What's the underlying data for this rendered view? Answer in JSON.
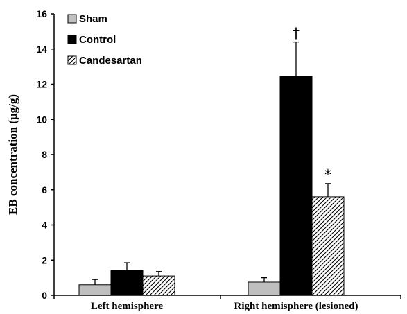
{
  "chart_data": {
    "type": "bar",
    "categories": [
      "Left hemisphere",
      "Right hemisphere (lesioned)"
    ],
    "series": [
      {
        "name": "Sham",
        "values": [
          0.6,
          0.75
        ],
        "errors": [
          0.3,
          0.25
        ],
        "fill": "solid",
        "color": "#bfbfbf"
      },
      {
        "name": "Control",
        "values": [
          1.4,
          12.45
        ],
        "errors": [
          0.45,
          1.95
        ],
        "fill": "solid",
        "color": "#000000"
      },
      {
        "name": "Candesartan",
        "values": [
          1.1,
          5.6
        ],
        "errors": [
          0.25,
          0.75
        ],
        "fill": "hatch",
        "color": "#ffffff"
      }
    ],
    "annotations": [
      {
        "text": "†",
        "category": 1,
        "series": 1
      },
      {
        "text": "*",
        "category": 1,
        "series": 2
      }
    ],
    "ylabel": "EB concentration (μg/g)",
    "ylim": [
      0,
      16
    ],
    "yticks": [
      0,
      2,
      4,
      6,
      8,
      10,
      12,
      14,
      16
    ],
    "grid": false,
    "legend_position": "top-left"
  }
}
